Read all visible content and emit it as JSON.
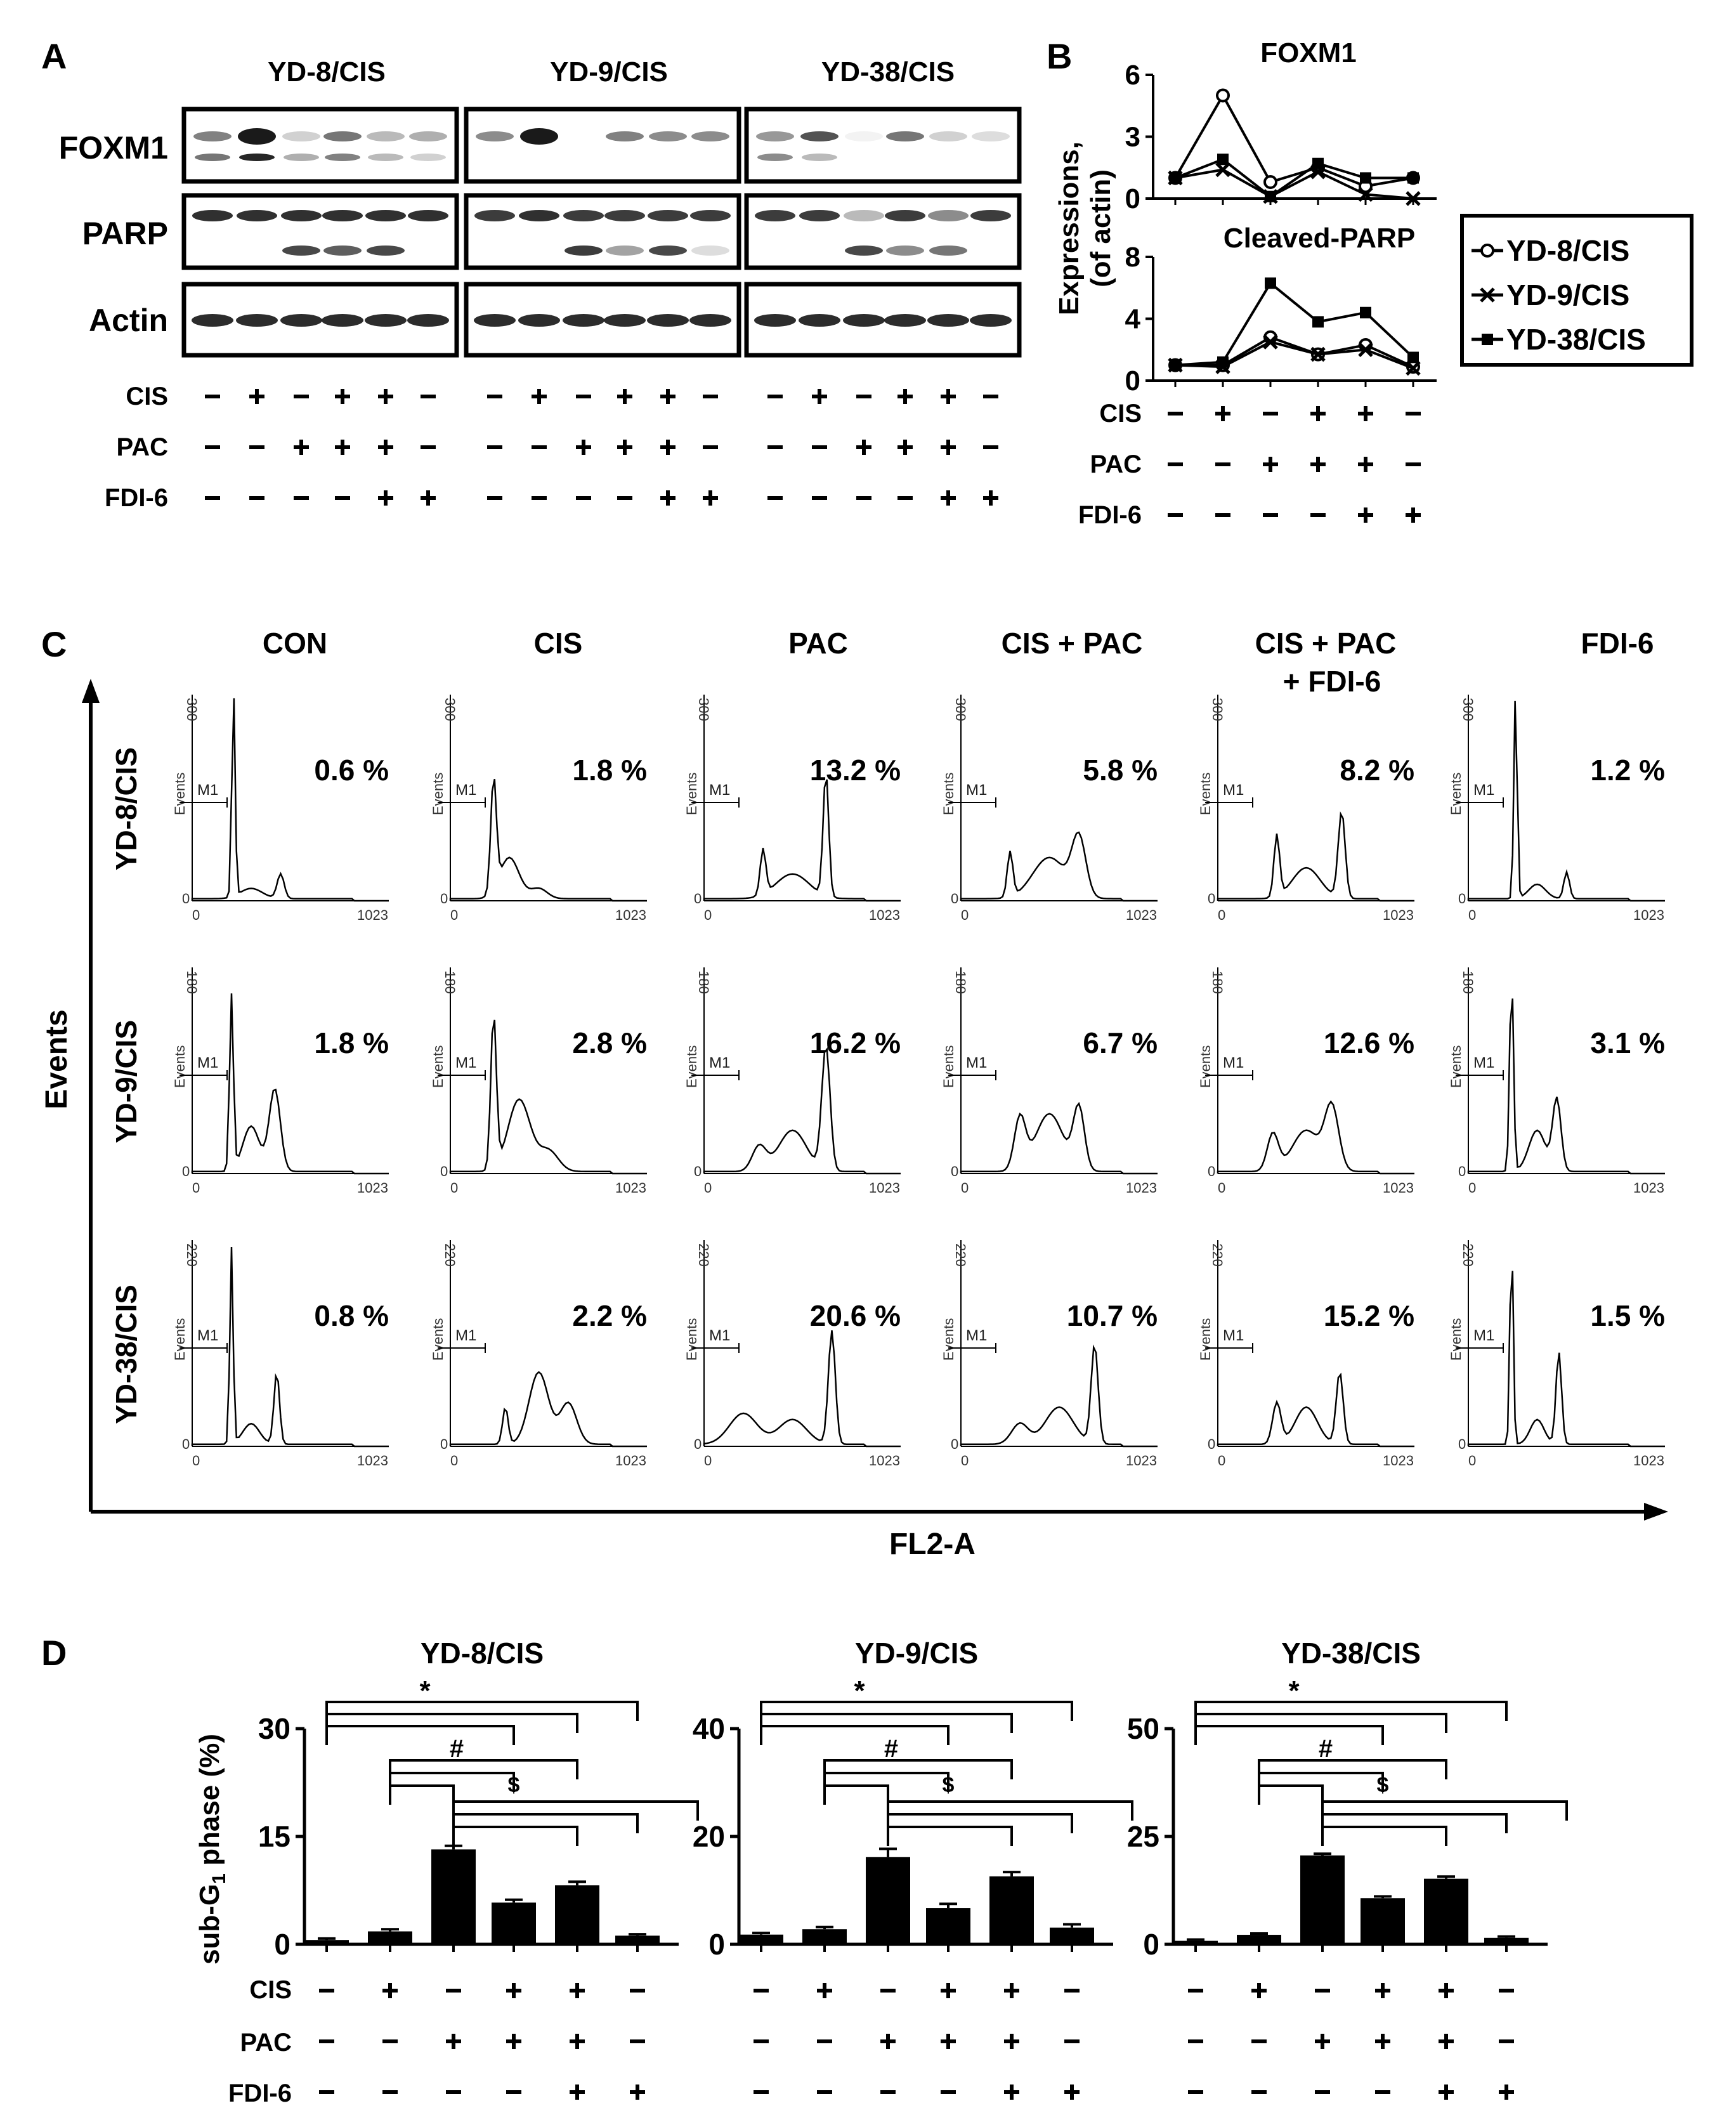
{
  "panel_labels": {
    "a": "A",
    "b": "B",
    "c": "C",
    "d": "D"
  },
  "cell_lines": [
    "YD-8/CIS",
    "YD-9/CIS",
    "YD-38/CIS"
  ],
  "treatment_labels": {
    "cis": "CIS",
    "pac": "PAC",
    "fdi": "FDI-6"
  },
  "treatments": {
    "cis": [
      "-",
      "+",
      "-",
      "+",
      "+",
      "-"
    ],
    "pac": [
      "-",
      "-",
      "+",
      "+",
      "+",
      "-"
    ],
    "fdi": [
      "-",
      "-",
      "-",
      "-",
      "+",
      "+"
    ]
  },
  "western_blot": {
    "rows": [
      "FOXM1",
      "PARP",
      "Actin"
    ],
    "colors": {
      "band": "#1a1a1a",
      "frame": "#000000"
    }
  },
  "panel_b": {
    "ylabel": "Expressions,\n(of actin)",
    "ylabel_line1": "Expressions,",
    "ylabel_line2": "(of actin)",
    "legend": [
      {
        "name": "YD-8/CIS",
        "marker": "open-circle"
      },
      {
        "name": "YD-9/CIS",
        "marker": "cross"
      },
      {
        "name": "YD-38/CIS",
        "marker": "filled-square"
      }
    ]
  },
  "panel_c": {
    "conditions": [
      "CON",
      "CIS",
      "PAC",
      "CIS + PAC",
      "CIS + PAC\n+ FDI-6",
      "FDI-6"
    ],
    "condition_line1": [
      "CON",
      "CIS",
      "PAC",
      "CIS + PAC",
      "CIS + PAC",
      "FDI-6"
    ],
    "condition_line2": [
      "",
      "",
      "",
      "",
      "+ FDI-6",
      ""
    ],
    "percentages": [
      [
        "0.6 %",
        "1.8 %",
        "13.2 %",
        "5.8 %",
        "8.2 %",
        "1.2 %"
      ],
      [
        "1.8 %",
        "2.8 %",
        "16.2 %",
        "6.7 %",
        "12.6 %",
        "3.1 %"
      ],
      [
        "0.8 %",
        "2.2 %",
        "20.6 %",
        "10.7 %",
        "15.2 %",
        "1.5 %"
      ]
    ],
    "ymax": [
      "300",
      "180",
      "220"
    ],
    "x_ticks": [
      "0",
      "1023"
    ],
    "y_min": "0",
    "gate_label": "M1",
    "hist_ylabel": "Events",
    "axis_ylabel": "Events",
    "axis_xlabel": "FL2-A"
  },
  "panel_d": {
    "ylabel": "sub-G1 phase (%)",
    "ylabel_main": "sub-G",
    "ylabel_sub": "1",
    "ylabel_rest": " phase (%)",
    "significance": [
      "*",
      "#",
      "$"
    ]
  },
  "chart_data": [
    {
      "type": "line",
      "title": "FOXM1",
      "ylabel": "Expressions, (of actin)",
      "ylim": [
        0,
        6
      ],
      "yticks": [
        0,
        3,
        6
      ],
      "x": [
        1,
        2,
        3,
        4,
        5,
        6
      ],
      "series": [
        {
          "name": "YD-8/CIS",
          "values": [
            1.0,
            5.0,
            0.8,
            1.5,
            0.6,
            1.0
          ]
        },
        {
          "name": "YD-9/CIS",
          "values": [
            1.0,
            1.4,
            0.1,
            1.3,
            0.2,
            0.0
          ]
        },
        {
          "name": "YD-38/CIS",
          "values": [
            1.0,
            1.9,
            0.1,
            1.7,
            1.0,
            1.0
          ]
        }
      ]
    },
    {
      "type": "line",
      "title": "Cleaved-PARP",
      "ylabel": "Expressions, (of actin)",
      "ylim": [
        0,
        8
      ],
      "yticks": [
        0,
        4,
        8
      ],
      "x": [
        1,
        2,
        3,
        4,
        5,
        6
      ],
      "series": [
        {
          "name": "YD-8/CIS",
          "values": [
            1.0,
            1.0,
            2.8,
            1.7,
            2.3,
            0.9
          ]
        },
        {
          "name": "YD-9/CIS",
          "values": [
            1.0,
            0.9,
            2.5,
            1.7,
            2.0,
            0.8
          ]
        },
        {
          "name": "YD-38/CIS",
          "values": [
            1.0,
            1.2,
            6.3,
            3.8,
            4.4,
            1.5
          ]
        }
      ]
    },
    {
      "type": "bar",
      "title": "YD-8/CIS",
      "ylabel": "sub-G1 phase (%)",
      "categories": [
        "1",
        "2",
        "3",
        "4",
        "5",
        "6"
      ],
      "values": [
        0.6,
        1.8,
        13.2,
        5.8,
        8.2,
        1.2
      ],
      "errors": [
        0.2,
        0.3,
        0.5,
        0.4,
        0.5,
        0.2
      ],
      "ylim": [
        0,
        30
      ],
      "yticks": [
        0,
        15,
        30
      ]
    },
    {
      "type": "bar",
      "title": "YD-9/CIS",
      "ylabel": "sub-G1 phase (%)",
      "categories": [
        "1",
        "2",
        "3",
        "4",
        "5",
        "6"
      ],
      "values": [
        1.8,
        2.8,
        16.2,
        6.7,
        12.6,
        3.1
      ],
      "errors": [
        0.3,
        0.4,
        1.5,
        0.8,
        0.8,
        0.6
      ],
      "ylim": [
        0,
        40
      ],
      "yticks": [
        0,
        20,
        40
      ]
    },
    {
      "type": "bar",
      "title": "YD-38/CIS",
      "ylabel": "sub-G1 phase (%)",
      "categories": [
        "1",
        "2",
        "3",
        "4",
        "5",
        "6"
      ],
      "values": [
        0.8,
        2.2,
        20.6,
        10.7,
        15.2,
        1.5
      ],
      "errors": [
        0.3,
        0.3,
        0.4,
        0.4,
        0.5,
        0.3
      ],
      "ylim": [
        0,
        50
      ],
      "yticks": [
        0,
        25,
        50
      ]
    }
  ]
}
